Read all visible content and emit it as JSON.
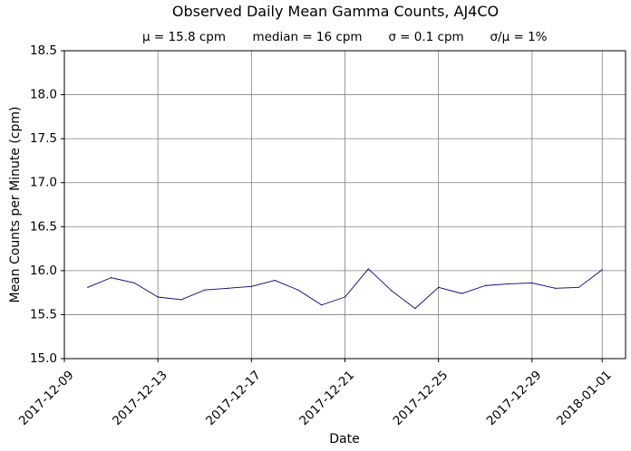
{
  "chart_data": {
    "type": "line",
    "title": "Observed Daily Mean Gamma Counts, AJ4CO",
    "subtitle": {
      "mean": "μ = 15.8 cpm",
      "median": "median = 16 cpm",
      "stdev": "σ = 0.1 cpm",
      "cv": "σ/μ = 1%"
    },
    "xlabel": "Date",
    "ylabel": "Mean Counts per Minute (cpm)",
    "xlim": [
      "2017-12-09",
      "2018-01-02"
    ],
    "ylim": [
      15.0,
      18.5
    ],
    "x_ticks": [
      "2017-12-09",
      "2017-12-13",
      "2017-12-17",
      "2017-12-21",
      "2017-12-25",
      "2017-12-29",
      "2018-01-01"
    ],
    "y_ticks": [
      "15.0",
      "15.5",
      "16.0",
      "16.5",
      "17.0",
      "17.5",
      "18.0",
      "18.5"
    ],
    "grid": true,
    "line_color": "#000080",
    "grid_color": "#808080",
    "series": [
      {
        "x": [
          "2017-12-10",
          "2017-12-11",
          "2017-12-12",
          "2017-12-13",
          "2017-12-14",
          "2017-12-15",
          "2017-12-16",
          "2017-12-17",
          "2017-12-18",
          "2017-12-19",
          "2017-12-20",
          "2017-12-21",
          "2017-12-22",
          "2017-12-23",
          "2017-12-24",
          "2017-12-25",
          "2017-12-26",
          "2017-12-27",
          "2017-12-28",
          "2017-12-29",
          "2017-12-30",
          "2017-12-31",
          "2018-01-01"
        ],
        "y": [
          15.81,
          15.92,
          15.86,
          15.7,
          15.67,
          15.78,
          15.8,
          15.82,
          15.89,
          15.78,
          15.61,
          15.7,
          16.02,
          15.77,
          15.57,
          15.81,
          15.74,
          15.83,
          15.85,
          15.86,
          15.8,
          15.81,
          16.01
        ]
      }
    ]
  }
}
